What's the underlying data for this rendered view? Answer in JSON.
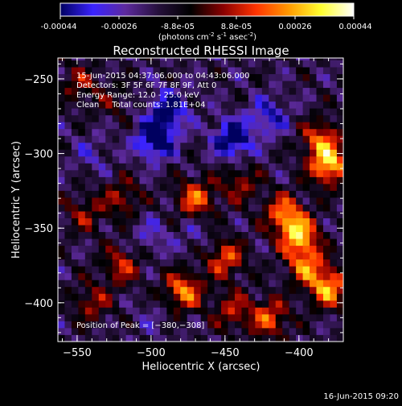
{
  "colorbar": {
    "ticks": [
      "-0.00044",
      "-0.00026",
      "-8.8e-05",
      "8.8e-05",
      "0.00026",
      "0.00044"
    ],
    "units_main": "(photons cm",
    "units_sup1": "-2",
    "units_mid": " s",
    "units_sup2": "-1",
    "units_end": " asec",
    "units_sup3": "-2",
    "units_close": ")"
  },
  "chart_data": {
    "type": "heatmap",
    "title": "Reconstructed RHESSI Image",
    "xlabel": "Heliocentric X (arcsec)",
    "ylabel": "Heliocentric Y (arcsec)",
    "xlim": [
      -563,
      -370
    ],
    "ylim": [
      -426,
      -236
    ],
    "xticks": [
      -550,
      -500,
      -450,
      -400
    ],
    "xticklabels": [
      "−550",
      "−500",
      "−450",
      "−400"
    ],
    "yticks": [
      -250,
      -300,
      -350,
      -400
    ],
    "yticklabels": [
      "−250",
      "−300",
      "−350",
      "−400"
    ],
    "zlim": [
      -0.00044,
      0.00044
    ],
    "colormap": [
      "#000060",
      "#3a23ff",
      "#5d2a9e",
      "#26103c",
      "#000000",
      "#8a0000",
      "#ff3300",
      "#ff9900",
      "#ffff30",
      "#ffffff"
    ],
    "info_lines": [
      "15-Jun-2015 04:37:06.000 to 04:43:06.000",
      "Detectors: 3F 5F 6F 7F 8F 9F, Att 0",
      "Energy Range: 12.0 - 25.0 keV",
      "Clean     Total counts: 1.81E+04"
    ],
    "peak_label": "Position of Peak = [−380,−308]",
    "peak": [
      -380,
      -308
    ],
    "features": [
      {
        "x": -548,
        "y": -253,
        "v": 0.00018
      },
      {
        "x": -525,
        "y": -265,
        "v": 0.0001
      },
      {
        "x": -497,
        "y": -290,
        "v": -0.0004
      },
      {
        "x": -488,
        "y": -270,
        "v": -0.0003
      },
      {
        "x": -445,
        "y": -290,
        "v": -0.00036
      },
      {
        "x": -420,
        "y": -275,
        "v": -0.00022
      },
      {
        "x": -380,
        "y": -308,
        "v": 0.00044
      },
      {
        "x": -385,
        "y": -290,
        "v": 0.0003
      },
      {
        "x": -470,
        "y": -330,
        "v": 0.00032
      },
      {
        "x": -440,
        "y": -320,
        "v": 0.0002
      },
      {
        "x": -520,
        "y": -330,
        "v": 0.0002
      },
      {
        "x": -545,
        "y": -340,
        "v": 0.00018
      },
      {
        "x": -400,
        "y": -355,
        "v": 0.00042
      },
      {
        "x": -410,
        "y": -340,
        "v": 0.00034
      },
      {
        "x": -380,
        "y": -390,
        "v": 0.0004
      },
      {
        "x": -395,
        "y": -375,
        "v": 0.00032
      },
      {
        "x": -450,
        "y": -370,
        "v": 0.0003
      },
      {
        "x": -478,
        "y": -392,
        "v": 0.00036
      },
      {
        "x": -520,
        "y": -375,
        "v": 0.00024
      },
      {
        "x": -540,
        "y": -400,
        "v": 0.0002
      },
      {
        "x": -445,
        "y": -405,
        "v": 0.00022
      },
      {
        "x": -420,
        "y": -410,
        "v": 0.0003
      },
      {
        "x": -500,
        "y": -355,
        "v": -0.00012
      },
      {
        "x": -540,
        "y": -300,
        "v": -0.0001
      },
      {
        "x": -470,
        "y": -355,
        "v": -8e-05
      },
      {
        "x": -500,
        "y": -410,
        "v": -6e-05
      }
    ]
  },
  "timestamp": "16-Jun-2015 09:20"
}
